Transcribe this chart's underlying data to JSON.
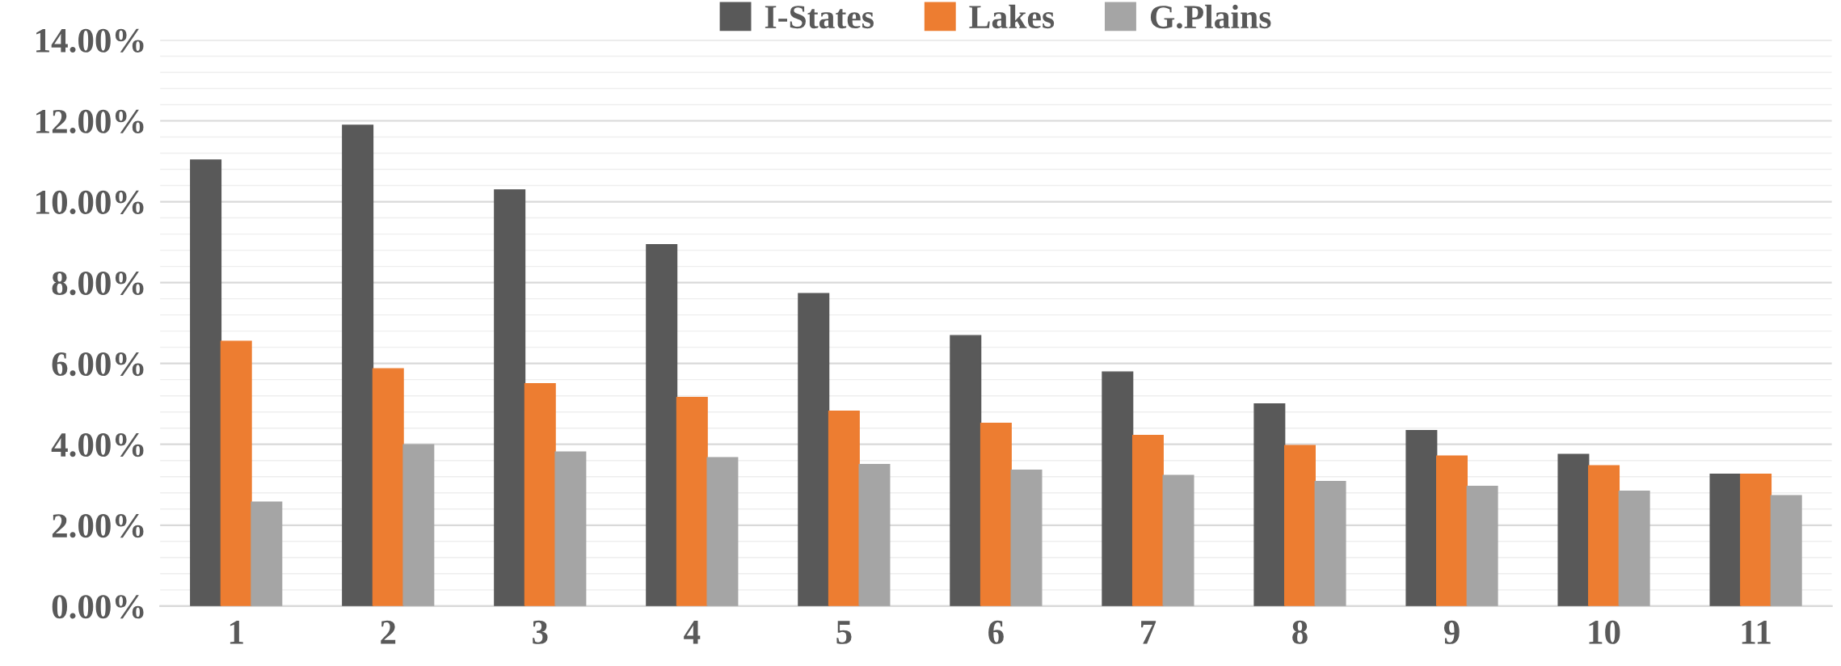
{
  "chart_data": {
    "type": "bar",
    "categories": [
      "1",
      "2",
      "3",
      "4",
      "5",
      "6",
      "7",
      "8",
      "9",
      "10",
      "11"
    ],
    "series": [
      {
        "name": "I-States",
        "color": "#595959",
        "values": [
          11.03,
          11.89,
          10.29,
          8.94,
          7.73,
          6.69,
          5.79,
          5.0,
          4.34,
          3.75,
          3.26
        ]
      },
      {
        "name": "Lakes",
        "color": "#ed7d31",
        "values": [
          6.55,
          5.87,
          5.5,
          5.16,
          4.82,
          4.52,
          4.22,
          3.97,
          3.71,
          3.47,
          3.26
        ]
      },
      {
        "name": "G.Plains",
        "color": "#a5a5a5",
        "values": [
          2.57,
          3.99,
          3.81,
          3.67,
          3.5,
          3.36,
          3.23,
          3.08,
          2.96,
          2.84,
          2.73
        ]
      }
    ],
    "ylim": [
      0,
      14
    ],
    "yticks": [
      {
        "value": 0,
        "label": "0.00%"
      },
      {
        "value": 0.4,
        "label": null
      },
      {
        "value": 0.8,
        "label": null
      },
      {
        "value": 1.2,
        "label": null
      },
      {
        "value": 1.6,
        "label": null
      },
      {
        "value": 2,
        "label": "2.00%"
      },
      {
        "value": 2.4,
        "label": null
      },
      {
        "value": 2.8,
        "label": null
      },
      {
        "value": 3.2,
        "label": null
      },
      {
        "value": 3.6,
        "label": null
      },
      {
        "value": 4,
        "label": "4.00%"
      },
      {
        "value": 4.4,
        "label": null
      },
      {
        "value": 4.8,
        "label": null
      },
      {
        "value": 5.2,
        "label": null
      },
      {
        "value": 5.6,
        "label": null
      },
      {
        "value": 6,
        "label": "6.00%"
      },
      {
        "value": 6.4,
        "label": null
      },
      {
        "value": 6.8,
        "label": null
      },
      {
        "value": 7.2,
        "label": null
      },
      {
        "value": 7.6,
        "label": null
      },
      {
        "value": 8,
        "label": "8.00%"
      },
      {
        "value": 8.4,
        "label": null
      },
      {
        "value": 8.8,
        "label": null
      },
      {
        "value": 9.2,
        "label": null
      },
      {
        "value": 9.6,
        "label": null
      },
      {
        "value": 10,
        "label": "10.00%"
      },
      {
        "value": 10.4,
        "label": null
      },
      {
        "value": 10.8,
        "label": null
      },
      {
        "value": 11.2,
        "label": null
      },
      {
        "value": 11.6,
        "label": null
      },
      {
        "value": 12,
        "label": "12.00%"
      },
      {
        "value": 12.4,
        "label": null
      },
      {
        "value": 12.8,
        "label": null
      },
      {
        "value": 13.2,
        "label": null
      },
      {
        "value": 13.6,
        "label": null
      },
      {
        "value": 14,
        "label": "14.00%"
      }
    ],
    "grid": "y",
    "legend": "top"
  }
}
